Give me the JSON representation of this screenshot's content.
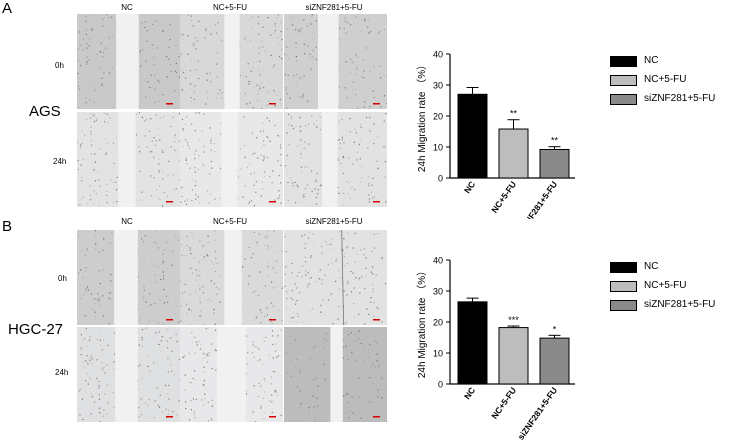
{
  "colors": {
    "nc": "#000000",
    "nc_5fu": "#bdbdbd",
    "si_5fu": "#8a8a8a"
  },
  "panel_a": {
    "letter": "A",
    "cell_line": "AGS",
    "columns": [
      "NC",
      "NC+5-FU",
      "siZNF281+5-FU"
    ],
    "rows": [
      "0h",
      "24h"
    ]
  },
  "panel_b": {
    "letter": "B",
    "cell_line": "HGC-27",
    "columns": [
      "NC",
      "NC+5-FU",
      "siZNF281+5-FU"
    ],
    "rows": [
      "0h",
      "24h"
    ]
  },
  "legend_a": [
    "NC",
    "NC+5-FU",
    "siZNF281+5-FU"
  ],
  "legend_b": [
    "NC",
    "NC+5-FU",
    "siZNF281+5-FU"
  ],
  "chart_data": [
    {
      "type": "bar",
      "categories": [
        "NC",
        "NC+5-FU",
        "siZNF281+5-FU"
      ],
      "values": [
        27,
        15.8,
        9.2
      ],
      "errors": [
        2.2,
        3.0,
        0.9
      ],
      "significance": [
        "",
        "**",
        "**"
      ],
      "ylabel": "24h Migration rate （%）",
      "ylim": [
        0,
        40
      ],
      "yticks": [
        0,
        10,
        20,
        30,
        40
      ],
      "ytick_labels": [
        "0",
        "10",
        "20",
        "30",
        "40"
      ],
      "colors": [
        "#000000",
        "#bdbdbd",
        "#8a8a8a"
      ]
    },
    {
      "type": "bar",
      "categories": [
        "NC",
        "NC+5-FU",
        "siZNF281+5-FU"
      ],
      "values": [
        26.5,
        18.2,
        14.8
      ],
      "errors": [
        1.2,
        0.5,
        0.9
      ],
      "significance": [
        "",
        "***",
        "*"
      ],
      "ylabel": "24h Migration rate （%）",
      "ylim": [
        0,
        40
      ],
      "yticks": [
        0,
        10,
        20,
        30,
        40
      ],
      "ytick_labels": [
        "0",
        "10",
        "20",
        "30",
        "40"
      ],
      "colors": [
        "#000000",
        "#bdbdbd",
        "#8a8a8a"
      ]
    }
  ]
}
